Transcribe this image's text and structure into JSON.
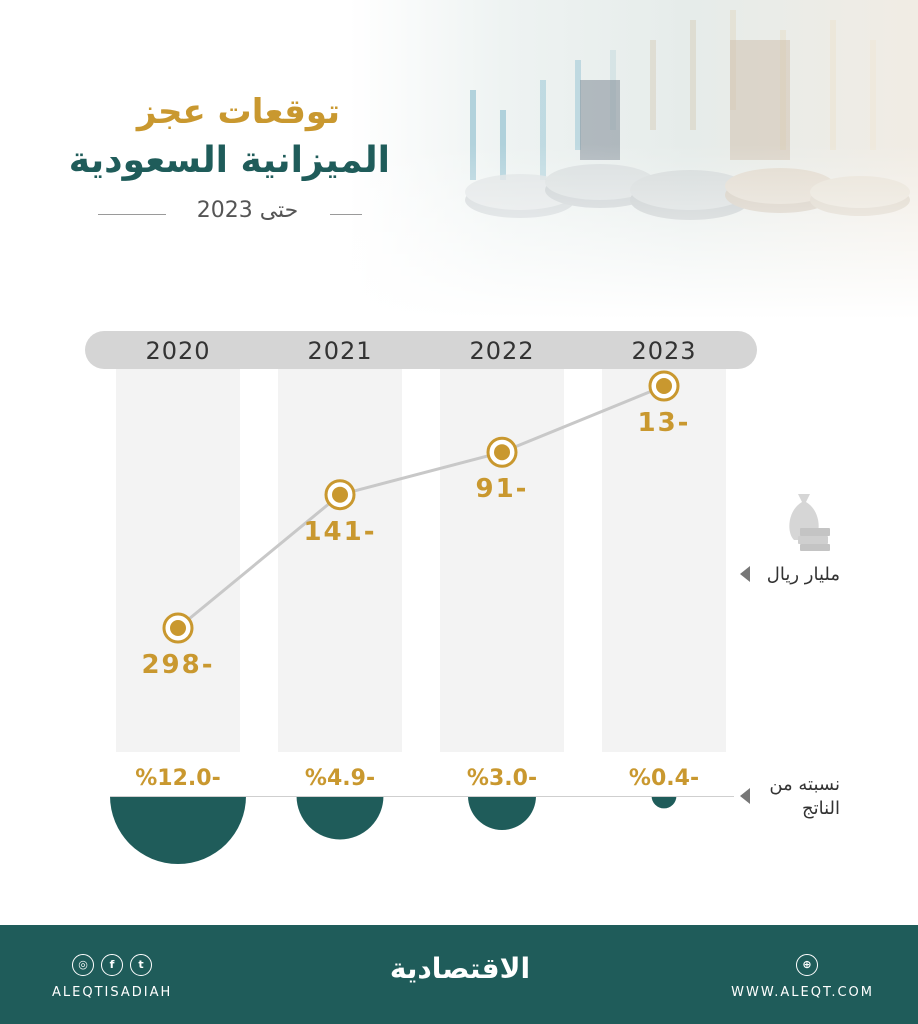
{
  "header": {
    "title_line1": "توقعات عجز",
    "title_line2": "الميزانية السعودية",
    "subtitle": "حتى 2023"
  },
  "side_labels": {
    "amount_unit": "مليار ريال",
    "gdp_line1": "نسبته من",
    "gdp_line2": "الناتج"
  },
  "chart_data": {
    "type": "line",
    "categories": [
      "2020",
      "2021",
      "2022",
      "2023"
    ],
    "series": [
      {
        "values": [
          -298,
          -141,
          -91,
          -13
        ]
      }
    ],
    "value_labels": [
      "298-",
      "141-",
      "91-",
      "13-"
    ],
    "gdp_share_percent": [
      -12.0,
      -4.9,
      -3.0,
      -0.4
    ],
    "gdp_share_labels": [
      "%12.0-",
      "%4.9-",
      "%3.0-",
      "%0.4-"
    ]
  },
  "footer": {
    "handle": "ALEQTISADIAH",
    "brand": "الاقتصادية",
    "website": "WWW.ALEQT.COM",
    "icons": [
      "instagram-icon",
      "facebook-icon",
      "twitter-icon",
      "globe-icon"
    ]
  },
  "colors": {
    "accent_gold": "#c9982f",
    "brand_teal": "#1f5c5a",
    "column_gray": "#f3f3f3",
    "year_bar_gray": "#d5d5d5"
  }
}
